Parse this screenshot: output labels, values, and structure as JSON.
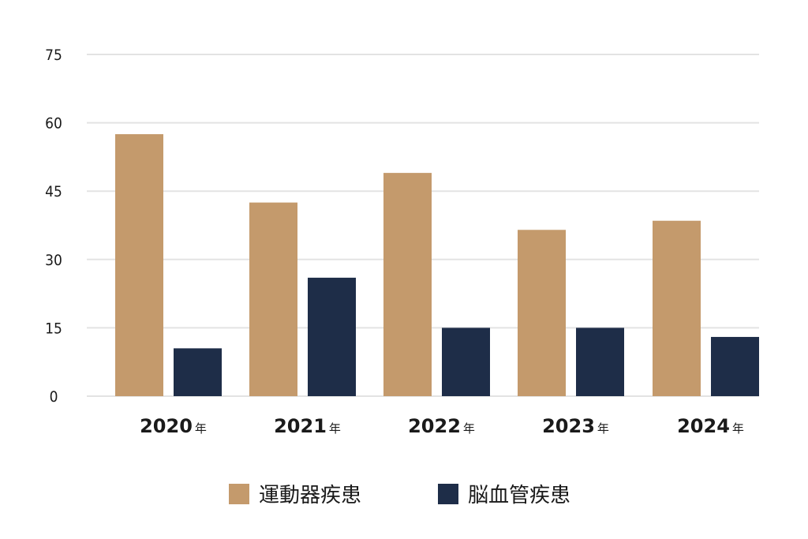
{
  "chart_data": {
    "type": "bar",
    "categories": [
      {
        "year": "2020",
        "suffix": "年"
      },
      {
        "year": "2021",
        "suffix": "年"
      },
      {
        "year": "2022",
        "suffix": "年"
      },
      {
        "year": "2023",
        "suffix": "年"
      },
      {
        "year": "2024",
        "suffix": "年"
      }
    ],
    "series": [
      {
        "name": "運動器疾患",
        "color": "#c49a6c",
        "values": [
          57.5,
          42.5,
          49,
          36.5,
          38.5
        ]
      },
      {
        "name": "脳血管疾患",
        "color": "#1e2d48",
        "values": [
          10.5,
          26,
          15,
          15,
          13
        ]
      }
    ],
    "yticks": [
      "0",
      "15",
      "30",
      "45",
      "60",
      "75"
    ],
    "ylim": [
      0,
      75
    ],
    "grid": true,
    "gridColor": "#e3e3e3",
    "legend_position": "bottom-center",
    "title": "",
    "xlabel": "",
    "ylabel": ""
  }
}
